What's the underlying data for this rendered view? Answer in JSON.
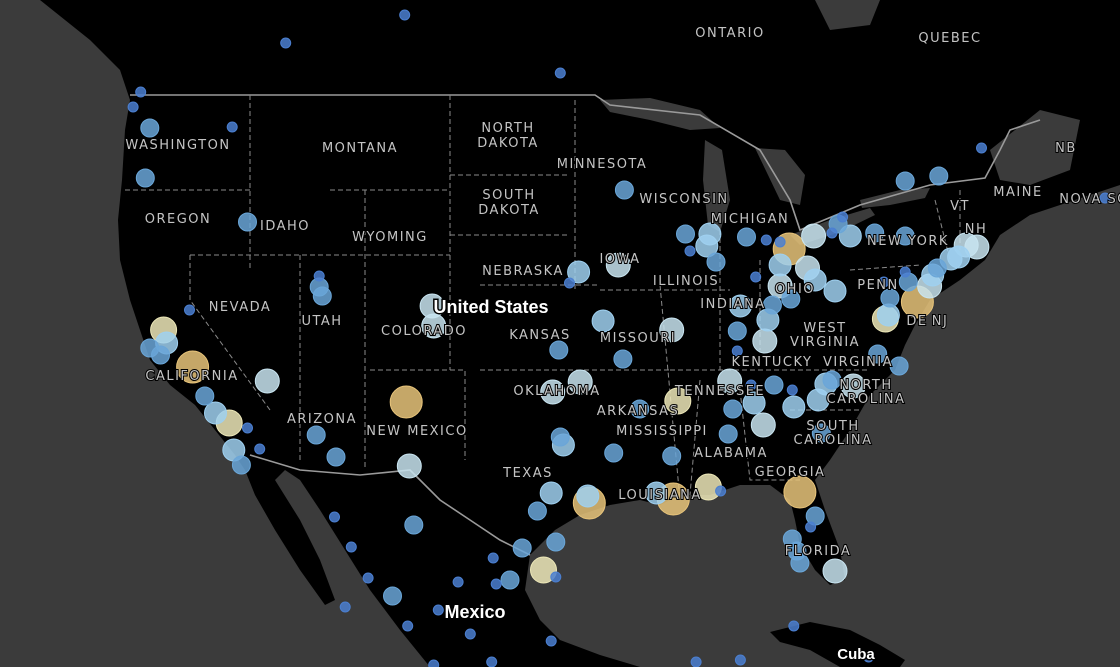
{
  "map": {
    "colors": {
      "ocean": "#3b3b3b",
      "land": "#000000",
      "border": "#9a9a9a",
      "label": "#c4c4c4"
    },
    "category_colors": {
      "small": "#4b7fd0",
      "medium": "#6aa6d8",
      "large": "#9fd0f0",
      "pale": "#c8e4f0",
      "pale-yellow": "#ede8b8",
      "yellow": "#e8c47a"
    },
    "countries": {
      "us": "United States",
      "mexico": "Mexico",
      "cuba": "Cuba"
    },
    "provinces": {
      "ontario": "ONTARIO",
      "quebec": "QUEBEC",
      "nb": "NB",
      "nova_scotia": "NOVA SCOTIA"
    },
    "states": {
      "washington": "WASHINGTON",
      "montana": "MONTANA",
      "north_dakota_1": "NORTH",
      "north_dakota_2": "DAKOTA",
      "minnesota": "MINNESOTA",
      "oregon": "OREGON",
      "idaho": "IDAHO",
      "south_dakota_1": "SOUTH",
      "south_dakota_2": "DAKOTA",
      "wisconsin": "WISCONSIN",
      "michigan": "MICHIGAN",
      "wyoming": "WYOMING",
      "new_york": "NEW YORK",
      "vt": "VT",
      "nh": "NH",
      "maine": "MAINE",
      "nebraska": "NEBRASKA",
      "iowa": "IOWA",
      "illinois": "ILLINOIS",
      "nevada": "NEVADA",
      "utah": "UTAH",
      "colorado": "COLORADO",
      "kansas": "KANSAS",
      "missouri": "MISSOURI",
      "indiana": "INDIANA",
      "ohio": "OHIO",
      "penn": "PENN",
      "nj": "NJ",
      "de": "DE",
      "west_virginia_1": "WEST",
      "west_virginia_2": "VIRGINIA",
      "virginia": "VIRGINIA",
      "kentucky": "KENTUCKY",
      "california": "CALIFORNIA",
      "arizona": "ARIZONA",
      "new_mexico": "NEW MEXICO",
      "oklahoma": "OKLAHOMA",
      "tennessee": "TENNESSEE",
      "north_carolina_1": "NORTH",
      "north_carolina_2": "CAROLINA",
      "arkansas": "ARKANSAS",
      "mississippi": "MISSISSIPPI",
      "alabama": "ALABAMA",
      "south_carolina_1": "SOUTH",
      "south_carolina_2": "CAROLINA",
      "georgia": "GEORGIA",
      "texas": "TEXAS",
      "louisiana": "LOUISIANA",
      "florida": "FLORIDA"
    },
    "points": [
      [
        -106.0,
        53.0,
        "small"
      ],
      [
        -113.8,
        51.6,
        "small"
      ],
      [
        -95.8,
        50.1,
        "small"
      ],
      [
        -123.3,
        49.15,
        "small"
      ],
      [
        -123.8,
        48.4,
        "small"
      ],
      [
        -122.7,
        47.35,
        "medium"
      ],
      [
        -117.3,
        47.4,
        "small"
      ],
      [
        -123.0,
        44.85,
        "medium"
      ],
      [
        -116.3,
        42.65,
        "medium"
      ],
      [
        -120.1,
        38.25,
        "small"
      ],
      [
        -121.8,
        37.25,
        "pale-yellow"
      ],
      [
        -122.7,
        36.35,
        "medium"
      ],
      [
        -122.0,
        36.0,
        "medium"
      ],
      [
        -121.6,
        36.6,
        "large"
      ],
      [
        -119.9,
        35.4,
        "yellow"
      ],
      [
        -115.0,
        34.7,
        "pale"
      ],
      [
        -119.1,
        33.95,
        "medium"
      ],
      [
        -118.4,
        33.1,
        "large"
      ],
      [
        -117.5,
        32.6,
        "pale-yellow"
      ],
      [
        -117.2,
        31.25,
        "large"
      ],
      [
        -116.7,
        30.5,
        "medium"
      ],
      [
        -116.3,
        32.35,
        "small"
      ],
      [
        -115.5,
        31.3,
        "small"
      ],
      [
        -111.6,
        39.95,
        "small"
      ],
      [
        -111.6,
        39.4,
        "medium"
      ],
      [
        -111.4,
        38.95,
        "medium"
      ],
      [
        -104.2,
        38.45,
        "pale"
      ],
      [
        -104.1,
        37.45,
        "pale"
      ],
      [
        -105.9,
        33.65,
        "yellow"
      ],
      [
        -111.8,
        32.0,
        "medium"
      ],
      [
        -110.5,
        30.9,
        "medium"
      ],
      [
        -105.7,
        30.45,
        "pale"
      ],
      [
        -110.6,
        27.9,
        "small"
      ],
      [
        -109.5,
        26.4,
        "small"
      ],
      [
        -105.4,
        27.5,
        "medium"
      ],
      [
        -108.4,
        24.85,
        "small"
      ],
      [
        -109.9,
        23.4,
        "small"
      ],
      [
        -106.8,
        23.95,
        "medium"
      ],
      [
        -105.8,
        22.45,
        "small"
      ],
      [
        -103.8,
        23.25,
        "small"
      ],
      [
        -102.5,
        24.65,
        "small"
      ],
      [
        -101.7,
        22.05,
        "small"
      ],
      [
        -100.2,
        25.85,
        "small"
      ],
      [
        -100.0,
        24.55,
        "small"
      ],
      [
        -99.1,
        24.75,
        "medium"
      ],
      [
        -98.3,
        26.35,
        "medium"
      ],
      [
        -96.9,
        25.25,
        "pale-yellow"
      ],
      [
        -96.1,
        24.9,
        "small"
      ],
      [
        -96.1,
        26.65,
        "medium"
      ],
      [
        -97.3,
        28.2,
        "medium"
      ],
      [
        -96.4,
        29.1,
        "large"
      ],
      [
        -93.9,
        28.6,
        "yellow"
      ],
      [
        -94.0,
        28.95,
        "large"
      ],
      [
        -95.6,
        31.5,
        "large"
      ],
      [
        -95.8,
        31.9,
        "medium"
      ],
      [
        -96.3,
        34.15,
        "pale"
      ],
      [
        -94.5,
        34.65,
        "pale"
      ],
      [
        -95.9,
        36.25,
        "medium"
      ],
      [
        -94.6,
        40.15,
        "large"
      ],
      [
        -95.2,
        39.6,
        "small"
      ],
      [
        -92.0,
        40.5,
        "pale"
      ],
      [
        -93.0,
        37.7,
        "large"
      ],
      [
        -91.7,
        35.8,
        "medium"
      ],
      [
        -88.5,
        37.25,
        "pale"
      ],
      [
        -90.6,
        33.3,
        "medium"
      ],
      [
        -88.1,
        33.7,
        "pale-yellow"
      ],
      [
        -92.3,
        31.1,
        "medium"
      ],
      [
        -88.5,
        30.95,
        "medium"
      ],
      [
        -89.5,
        29.1,
        "large"
      ],
      [
        -88.4,
        28.8,
        "yellow"
      ],
      [
        -86.1,
        29.4,
        "pale-yellow"
      ],
      [
        -85.3,
        29.2,
        "small"
      ],
      [
        -91.6,
        44.25,
        "medium"
      ],
      [
        -87.6,
        42.05,
        "medium"
      ],
      [
        -87.3,
        41.2,
        "small"
      ],
      [
        -86.0,
        42.05,
        "large"
      ],
      [
        -86.2,
        41.45,
        "large"
      ],
      [
        -85.6,
        40.65,
        "medium"
      ],
      [
        -83.6,
        41.9,
        "medium"
      ],
      [
        -82.3,
        41.75,
        "small"
      ],
      [
        -80.8,
        41.3,
        "yellow"
      ],
      [
        -81.4,
        40.5,
        "large"
      ],
      [
        -79.2,
        41.95,
        "pale"
      ],
      [
        -79.6,
        40.35,
        "pale"
      ],
      [
        -79.1,
        39.75,
        "large"
      ],
      [
        -77.8,
        39.2,
        "large"
      ],
      [
        -83.0,
        39.9,
        "small"
      ],
      [
        -81.4,
        39.45,
        "pale"
      ],
      [
        -80.7,
        38.8,
        "medium"
      ],
      [
        -84.0,
        38.45,
        "large"
      ],
      [
        -81.9,
        38.5,
        "medium"
      ],
      [
        -82.2,
        37.75,
        "large"
      ],
      [
        -84.2,
        37.2,
        "medium"
      ],
      [
        -82.4,
        36.7,
        "pale"
      ],
      [
        -84.2,
        36.2,
        "small"
      ],
      [
        -84.7,
        34.7,
        "pale"
      ],
      [
        -83.3,
        34.5,
        "small"
      ],
      [
        -81.8,
        34.5,
        "medium"
      ],
      [
        -83.1,
        33.6,
        "large"
      ],
      [
        -84.5,
        33.3,
        "medium"
      ],
      [
        -82.5,
        32.5,
        "pale"
      ],
      [
        -84.8,
        32.05,
        "medium"
      ],
      [
        -80.6,
        34.25,
        "small"
      ],
      [
        -80.5,
        33.4,
        "large"
      ],
      [
        -78.9,
        33.75,
        "large"
      ],
      [
        -78.4,
        34.55,
        "large"
      ],
      [
        -78.0,
        34.75,
        "medium"
      ],
      [
        -76.6,
        34.45,
        "pale"
      ],
      [
        -78.7,
        32.1,
        "medium"
      ],
      [
        -80.1,
        29.15,
        "yellow"
      ],
      [
        -79.1,
        27.95,
        "medium"
      ],
      [
        -79.4,
        27.4,
        "small"
      ],
      [
        -80.6,
        26.8,
        "medium"
      ],
      [
        -80.3,
        26.2,
        "medium"
      ],
      [
        -80.1,
        25.6,
        "medium"
      ],
      [
        -77.8,
        25.2,
        "pale"
      ],
      [
        -75.0,
        36.05,
        "medium"
      ],
      [
        -73.6,
        35.45,
        "medium"
      ],
      [
        -73.2,
        40.15,
        "small"
      ],
      [
        -74.6,
        39.65,
        "small"
      ],
      [
        -74.2,
        38.85,
        "medium"
      ],
      [
        -74.5,
        37.8,
        "pale-yellow"
      ],
      [
        -72.4,
        38.65,
        "yellow"
      ],
      [
        -74.3,
        38.0,
        "large"
      ],
      [
        -73.0,
        39.65,
        "medium"
      ],
      [
        -71.6,
        39.45,
        "pale"
      ],
      [
        -71.1,
        40.35,
        "medium"
      ],
      [
        -71.4,
        40.0,
        "large"
      ],
      [
        -70.2,
        40.8,
        "large"
      ],
      [
        -69.2,
        41.5,
        "pale"
      ],
      [
        -68.5,
        41.4,
        "pale"
      ],
      [
        -69.7,
        40.9,
        "large"
      ],
      [
        -73.2,
        41.95,
        "medium"
      ],
      [
        -75.2,
        42.1,
        "medium"
      ],
      [
        -76.8,
        41.95,
        "large"
      ],
      [
        -77.6,
        42.55,
        "medium"
      ],
      [
        -77.3,
        42.9,
        "small"
      ],
      [
        -78.0,
        42.1,
        "small"
      ],
      [
        -81.4,
        41.65,
        "small"
      ],
      [
        -73.2,
        44.7,
        "medium"
      ],
      [
        -71.0,
        44.95,
        "medium"
      ],
      [
        -68.2,
        46.35,
        "small"
      ],
      [
        -60.1,
        43.85,
        "small"
      ],
      [
        -80.5,
        22.45,
        "small"
      ],
      [
        -96.4,
        21.7,
        "small"
      ],
      [
        -100.3,
        20.65,
        "small"
      ],
      [
        -104.1,
        20.5,
        "small"
      ],
      [
        -84.0,
        20.75,
        "small"
      ],
      [
        -86.9,
        20.65,
        "small"
      ],
      [
        -75.6,
        20.9,
        "small"
      ]
    ]
  }
}
